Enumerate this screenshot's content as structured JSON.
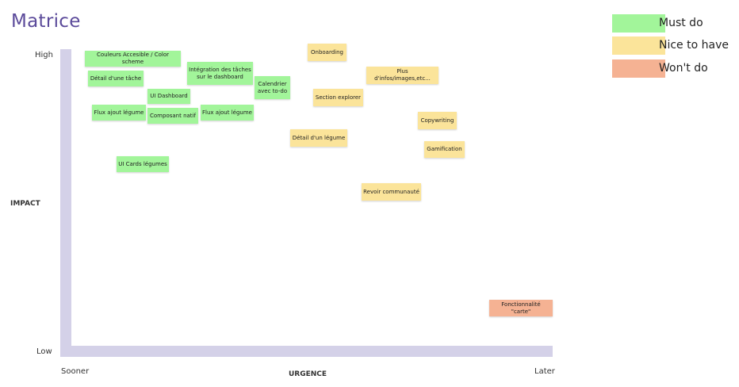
{
  "title": "Matrice",
  "axes": {
    "y_label": "IMPACT",
    "y_high": "High",
    "y_low": "Low",
    "x_label": "URGENCE",
    "x_start": "Sooner",
    "x_end": "Later"
  },
  "legend": [
    {
      "label": "Must do",
      "color": "#a2f59a"
    },
    {
      "label": "Nice to have",
      "color": "#fbe49a"
    },
    {
      "label": "Won't do",
      "color": "#f5b293"
    }
  ],
  "notes": {
    "couleurs": "Couleurs Accesible / Color scheme",
    "detail_tache": "Détail d'une tâche",
    "integration": "Intégration des tâches sur le dashboard",
    "calendrier": "Calendrier avec to-do",
    "ui_dashboard": "UI Dashboard",
    "flux_ajout_1": "Flux ajout légume",
    "composant_natif": "Composant natif",
    "flux_ajout_2": "Flux ajout légume",
    "ui_cards": "UI Cards légumes",
    "onboarding": "Onboarding",
    "plus_infos": "Plus d'infos/images,etc...",
    "section_explorer": "Section explorer",
    "copywriting": "Copywriting",
    "detail_legume": "Détail d'un légume",
    "gamification": "Gamification",
    "revoir_communaute": "Revoir communauté",
    "fonctionnalite_carte": "Fonctionnalité \"carte\""
  }
}
